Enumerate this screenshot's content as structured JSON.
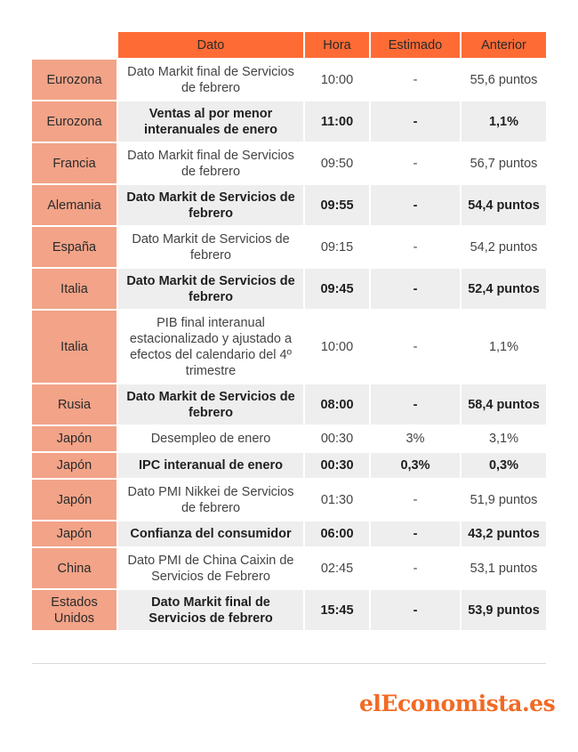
{
  "table": {
    "headers": [
      "",
      "Dato",
      "Hora",
      "Estimado",
      "Anterior"
    ],
    "rows": [
      {
        "pais": "Eurozona",
        "dato": "Dato Markit final de Servicios de febrero",
        "hora": "10:00",
        "estimado": "-",
        "anterior": "55,6 puntos"
      },
      {
        "pais": "Eurozona",
        "dato": "Ventas al por menor interanuales de enero",
        "hora": "11:00",
        "estimado": "-",
        "anterior": "1,1%"
      },
      {
        "pais": "Francia",
        "dato": "Dato Markit final de Servicios de febrero",
        "hora": "09:50",
        "estimado": "-",
        "anterior": "56,7 puntos"
      },
      {
        "pais": "Alemania",
        "dato": "Dato Markit de Servicios de febrero",
        "hora": "09:55",
        "estimado": "-",
        "anterior": "54,4 puntos"
      },
      {
        "pais": "España",
        "dato": "Dato Markit de Servicios de febrero",
        "hora": "09:15",
        "estimado": "-",
        "anterior": "54,2 puntos"
      },
      {
        "pais": "Italia",
        "dato": "Dato Markit de Servicios de febrero",
        "hora": "09:45",
        "estimado": "-",
        "anterior": "52,4 puntos"
      },
      {
        "pais": "Italia",
        "dato": "PIB final interanual estacionalizado y ajustado a efectos del calendario del 4º trimestre",
        "hora": "10:00",
        "estimado": "-",
        "anterior": "1,1%"
      },
      {
        "pais": "Rusia",
        "dato": "Dato Markit de Servicios de febrero",
        "hora": "08:00",
        "estimado": "-",
        "anterior": "58,4 puntos"
      },
      {
        "pais": "Japón",
        "dato": "Desempleo de enero",
        "hora": "00:30",
        "estimado": "3%",
        "anterior": "3,1%"
      },
      {
        "pais": "Japón",
        "dato": "IPC interanual de enero",
        "hora": "00:30",
        "estimado": "0,3%",
        "anterior": "0,3%"
      },
      {
        "pais": "Japón",
        "dato": "Dato PMI Nikkei de Servicios de febrero",
        "hora": "01:30",
        "estimado": "-",
        "anterior": "51,9 puntos"
      },
      {
        "pais": "Japón",
        "dato": "Confianza del consumidor",
        "hora": "06:00",
        "estimado": "-",
        "anterior": "43,2 puntos"
      },
      {
        "pais": "China",
        "dato": "Dato PMI de China Caixin de Servicios de Febrero",
        "hora": "02:45",
        "estimado": "-",
        "anterior": "53,1 puntos"
      },
      {
        "pais": "Estados Unidos",
        "dato": "Dato Markit final de Servicios de febrero",
        "hora": "15:45",
        "estimado": "-",
        "anterior": "53,9 puntos"
      }
    ]
  },
  "logo": {
    "text": "elEconomista.es"
  },
  "colors": {
    "header": "#ff6b35",
    "country_column": "#f2a388",
    "even_row": "#eeeeee",
    "logo": "#f26a24"
  }
}
